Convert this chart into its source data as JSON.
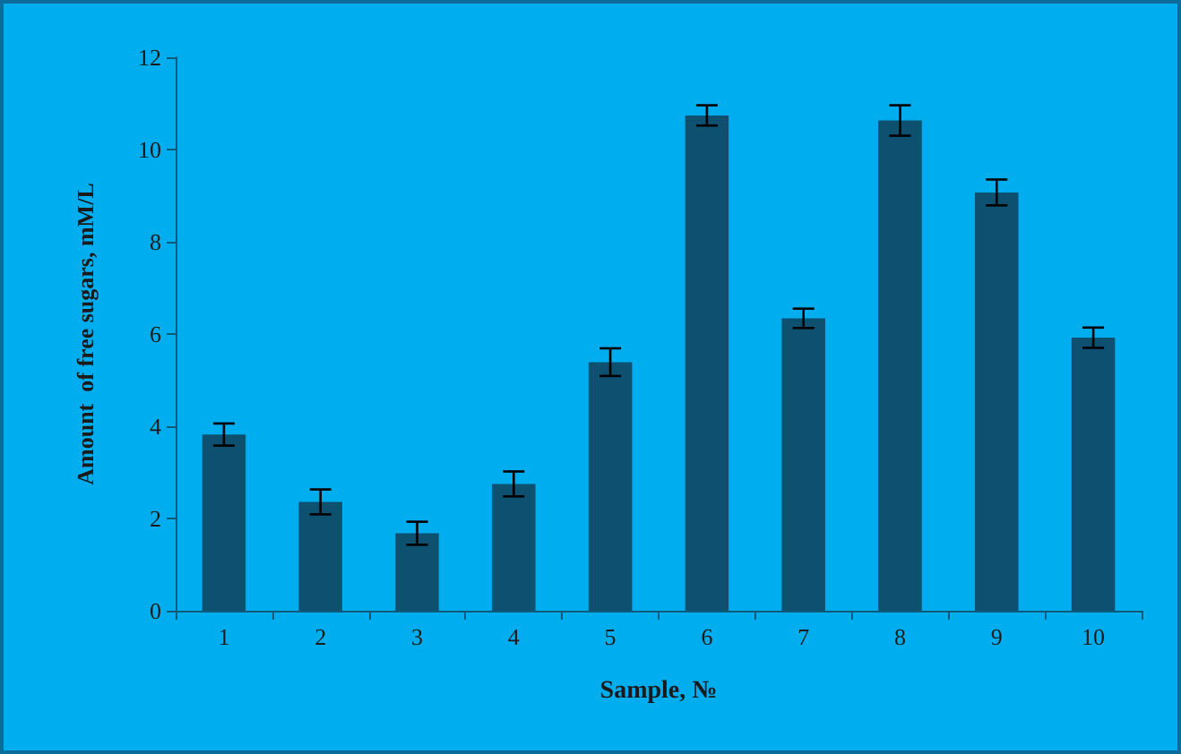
{
  "chart_data": {
    "type": "bar",
    "xlabel": "Sample, №",
    "ylabel": "Amount  of free sugars, mM/L",
    "categories": [
      "1",
      "2",
      "3",
      "4",
      "5",
      "6",
      "7",
      "8",
      "9",
      "10"
    ],
    "values": [
      3.82,
      2.36,
      1.68,
      2.75,
      5.39,
      10.74,
      6.34,
      10.63,
      9.07,
      5.92
    ],
    "errors": [
      0.24,
      0.27,
      0.25,
      0.27,
      0.3,
      0.22,
      0.21,
      0.33,
      0.28,
      0.22
    ],
    "color": "#0e5070",
    "ylim": [
      0,
      12
    ],
    "yticks": [
      0,
      2,
      4,
      6,
      8,
      10,
      12
    ],
    "grid": false
  }
}
